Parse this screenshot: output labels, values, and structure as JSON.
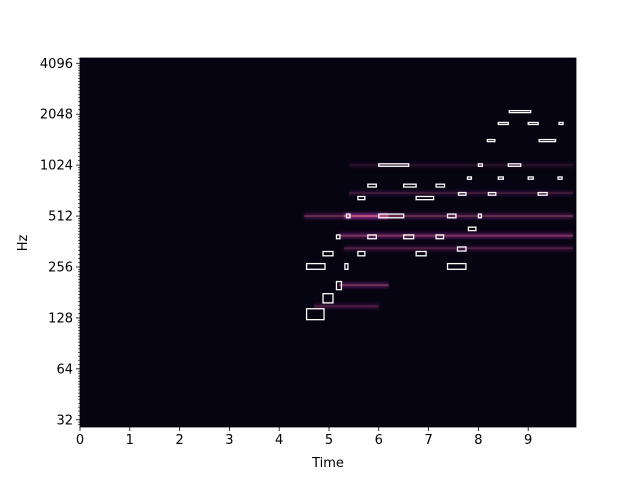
{
  "chart_data": {
    "type": "heatmap",
    "subtype": "log-frequency spectrogram with note annotation boxes",
    "xlabel": "Time",
    "ylabel": "Hz",
    "xlim": [
      0,
      9.96
    ],
    "ylim": [
      29.0,
      4400
    ],
    "y_scale": "log2",
    "x_ticks": [
      0,
      1,
      2,
      3,
      4,
      5,
      6,
      7,
      8,
      9
    ],
    "x_tick_labels": [
      "0",
      "1",
      "2",
      "3",
      "4",
      "5",
      "6",
      "7",
      "8",
      "9"
    ],
    "y_ticks": [
      32,
      64,
      128,
      256,
      512,
      1024,
      2048,
      4096
    ],
    "y_tick_labels": [
      "32",
      "64",
      "128",
      "256",
      "512",
      "1024",
      "2048",
      "4096"
    ],
    "colormap": "magma",
    "grid": false,
    "harmonic_energy": [
      {
        "t0": 4.5,
        "t1": 9.9,
        "freq": 512,
        "intensity": 0.35
      },
      {
        "t0": 5.2,
        "t1": 9.9,
        "freq": 392,
        "intensity": 0.45
      },
      {
        "t0": 5.3,
        "t1": 6.2,
        "freq": 512,
        "intensity": 0.7
      },
      {
        "t0": 5.2,
        "t1": 6.2,
        "freq": 200,
        "intensity": 0.4
      },
      {
        "t0": 4.7,
        "t1": 6.0,
        "freq": 150,
        "intensity": 0.25
      },
      {
        "t0": 5.3,
        "t1": 9.9,
        "freq": 330,
        "intensity": 0.25
      },
      {
        "t0": 5.4,
        "t1": 9.9,
        "freq": 700,
        "intensity": 0.2
      },
      {
        "t0": 5.4,
        "t1": 9.9,
        "freq": 1024,
        "intensity": 0.12
      }
    ],
    "note_boxes": [
      {
        "t0": 4.55,
        "t1": 4.9,
        "f0": 125,
        "f1": 145
      },
      {
        "t0": 4.55,
        "t1": 4.92,
        "f0": 248,
        "f1": 268
      },
      {
        "t0": 4.88,
        "t1": 5.08,
        "f0": 157,
        "f1": 178
      },
      {
        "t0": 4.88,
        "t1": 5.08,
        "f0": 298,
        "f1": 316
      },
      {
        "t0": 5.15,
        "t1": 5.25,
        "f0": 188,
        "f1": 210
      },
      {
        "t0": 5.15,
        "t1": 5.22,
        "f0": 376,
        "f1": 396
      },
      {
        "t0": 5.32,
        "t1": 5.38,
        "f0": 248,
        "f1": 268
      },
      {
        "t0": 5.35,
        "t1": 5.42,
        "f0": 500,
        "f1": 526
      },
      {
        "t0": 5.58,
        "t1": 5.72,
        "f0": 298,
        "f1": 316
      },
      {
        "t0": 5.58,
        "t1": 5.72,
        "f0": 640,
        "f1": 668
      },
      {
        "t0": 5.78,
        "t1": 5.95,
        "f0": 376,
        "f1": 396
      },
      {
        "t0": 5.78,
        "t1": 5.95,
        "f0": 760,
        "f1": 790
      },
      {
        "t0": 6.0,
        "t1": 6.5,
        "f0": 500,
        "f1": 526
      },
      {
        "t0": 6.0,
        "t1": 6.6,
        "f0": 1008,
        "f1": 1042
      },
      {
        "t0": 6.5,
        "t1": 6.7,
        "f0": 376,
        "f1": 396
      },
      {
        "t0": 6.5,
        "t1": 6.75,
        "f0": 760,
        "f1": 790
      },
      {
        "t0": 6.75,
        "t1": 6.95,
        "f0": 298,
        "f1": 316
      },
      {
        "t0": 6.75,
        "t1": 7.1,
        "f0": 640,
        "f1": 668
      },
      {
        "t0": 7.15,
        "t1": 7.3,
        "f0": 376,
        "f1": 396
      },
      {
        "t0": 7.15,
        "t1": 7.32,
        "f0": 760,
        "f1": 790
      },
      {
        "t0": 7.38,
        "t1": 7.55,
        "f0": 500,
        "f1": 526
      },
      {
        "t0": 7.38,
        "t1": 7.75,
        "f0": 248,
        "f1": 268
      },
      {
        "t0": 7.58,
        "t1": 7.75,
        "f0": 318,
        "f1": 336
      },
      {
        "t0": 7.6,
        "t1": 7.75,
        "f0": 680,
        "f1": 705
      },
      {
        "t0": 7.78,
        "t1": 7.86,
        "f0": 845,
        "f1": 872
      },
      {
        "t0": 7.8,
        "t1": 7.95,
        "f0": 420,
        "f1": 440
      },
      {
        "t0": 8.0,
        "t1": 8.06,
        "f0": 500,
        "f1": 526
      },
      {
        "t0": 8.0,
        "t1": 8.08,
        "f0": 1008,
        "f1": 1042
      },
      {
        "t0": 8.2,
        "t1": 8.35,
        "f0": 680,
        "f1": 705
      },
      {
        "t0": 8.18,
        "t1": 8.33,
        "f0": 1410,
        "f1": 1450
      },
      {
        "t0": 8.4,
        "t1": 8.5,
        "f0": 845,
        "f1": 872
      },
      {
        "t0": 8.4,
        "t1": 8.6,
        "f0": 1790,
        "f1": 1830
      },
      {
        "t0": 8.6,
        "t1": 8.85,
        "f0": 1008,
        "f1": 1042
      },
      {
        "t0": 8.62,
        "t1": 9.05,
        "f0": 2110,
        "f1": 2150
      },
      {
        "t0": 9.0,
        "t1": 9.1,
        "f0": 845,
        "f1": 872
      },
      {
        "t0": 9.0,
        "t1": 9.2,
        "f0": 1790,
        "f1": 1830
      },
      {
        "t0": 9.2,
        "t1": 9.38,
        "f0": 680,
        "f1": 705
      },
      {
        "t0": 9.22,
        "t1": 9.55,
        "f0": 1410,
        "f1": 1450
      },
      {
        "t0": 9.6,
        "t1": 9.68,
        "f0": 845,
        "f1": 872
      },
      {
        "t0": 9.62,
        "t1": 9.7,
        "f0": 1790,
        "f1": 1830
      }
    ]
  }
}
